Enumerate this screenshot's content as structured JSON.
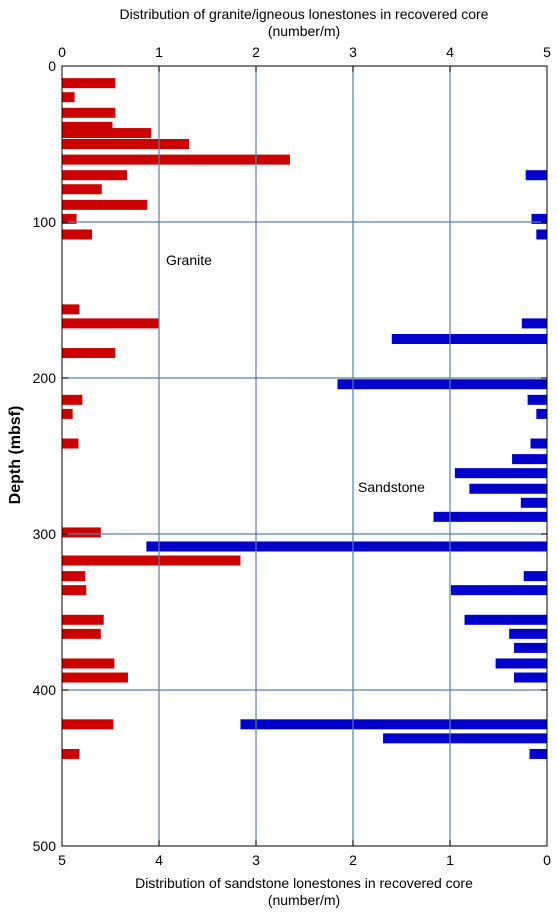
{
  "chart_data": {
    "type": "bar",
    "orientation": "horizontal",
    "top_axis": {
      "title_line1": "Distribution of granite/igneous lonestones in recovered core",
      "title_line2": "(number/m)",
      "range": [
        0,
        5
      ],
      "ticks": [
        "0",
        "1",
        "2",
        "3",
        "4",
        "5"
      ]
    },
    "bottom_axis": {
      "title_line1": "Distribution of sandstone lonestones in recovered core",
      "title_line2": "(number/m)",
      "range": [
        5,
        0
      ],
      "reversed": true,
      "ticks": [
        "5",
        "4",
        "3",
        "2",
        "1",
        "0"
      ]
    },
    "y_axis": {
      "label": "Depth (mbsf)",
      "range": [
        0,
        500
      ],
      "inverted": true,
      "ticks": [
        "0",
        "100",
        "200",
        "300",
        "400",
        "500"
      ]
    },
    "grid": "major ticks on both axes",
    "annotations": {
      "granite_label": "Granite",
      "sandstone_label": "Sandstone"
    },
    "colors": {
      "granite": "#cc0000",
      "sandstone": "#0000cc",
      "grid": "#5b7fa6"
    },
    "series": [
      {
        "name": "Granite",
        "anchor": "left",
        "color": "#cc0000",
        "bars": [
          {
            "depth": 11,
            "value": 0.55
          },
          {
            "depth": 20,
            "value": 0.13
          },
          {
            "depth": 30,
            "value": 0.55
          },
          {
            "depth": 39,
            "value": 0.52
          },
          {
            "depth": 43,
            "value": 0.92
          },
          {
            "depth": 50,
            "value": 1.31
          },
          {
            "depth": 60,
            "value": 2.35
          },
          {
            "depth": 70,
            "value": 0.67
          },
          {
            "depth": 79,
            "value": 0.41
          },
          {
            "depth": 89,
            "value": 0.88
          },
          {
            "depth": 98,
            "value": 0.15
          },
          {
            "depth": 108,
            "value": 0.31
          },
          {
            "depth": 156,
            "value": 0.18
          },
          {
            "depth": 165,
            "value": 1.0
          },
          {
            "depth": 184,
            "value": 0.55
          },
          {
            "depth": 214,
            "value": 0.21
          },
          {
            "depth": 223,
            "value": 0.11
          },
          {
            "depth": 242,
            "value": 0.17
          },
          {
            "depth": 299,
            "value": 0.4
          },
          {
            "depth": 317,
            "value": 1.84
          },
          {
            "depth": 327,
            "value": 0.24
          },
          {
            "depth": 336,
            "value": 0.25
          },
          {
            "depth": 355,
            "value": 0.43
          },
          {
            "depth": 364,
            "value": 0.4
          },
          {
            "depth": 383,
            "value": 0.54
          },
          {
            "depth": 392,
            "value": 0.68
          },
          {
            "depth": 422,
            "value": 0.53
          },
          {
            "depth": 441,
            "value": 0.18
          }
        ]
      },
      {
        "name": "Sandstone",
        "anchor": "right",
        "color": "#0000cc",
        "bars": [
          {
            "depth": 70,
            "value": 0.22
          },
          {
            "depth": 98,
            "value": 0.16
          },
          {
            "depth": 108,
            "value": 0.11
          },
          {
            "depth": 165,
            "value": 0.26
          },
          {
            "depth": 175,
            "value": 1.6
          },
          {
            "depth": 204,
            "value": 2.16
          },
          {
            "depth": 214,
            "value": 0.2
          },
          {
            "depth": 223,
            "value": 0.11
          },
          {
            "depth": 242,
            "value": 0.17
          },
          {
            "depth": 252,
            "value": 0.36
          },
          {
            "depth": 261,
            "value": 0.95
          },
          {
            "depth": 271,
            "value": 0.8
          },
          {
            "depth": 280,
            "value": 0.27
          },
          {
            "depth": 289,
            "value": 1.17
          },
          {
            "depth": 308,
            "value": 4.13
          },
          {
            "depth": 327,
            "value": 0.24
          },
          {
            "depth": 336,
            "value": 0.99
          },
          {
            "depth": 355,
            "value": 0.85
          },
          {
            "depth": 364,
            "value": 0.39
          },
          {
            "depth": 373,
            "value": 0.34
          },
          {
            "depth": 383,
            "value": 0.53
          },
          {
            "depth": 392,
            "value": 0.34
          },
          {
            "depth": 422,
            "value": 3.16
          },
          {
            "depth": 431,
            "value": 1.69
          },
          {
            "depth": 441,
            "value": 0.18
          }
        ]
      }
    ]
  }
}
